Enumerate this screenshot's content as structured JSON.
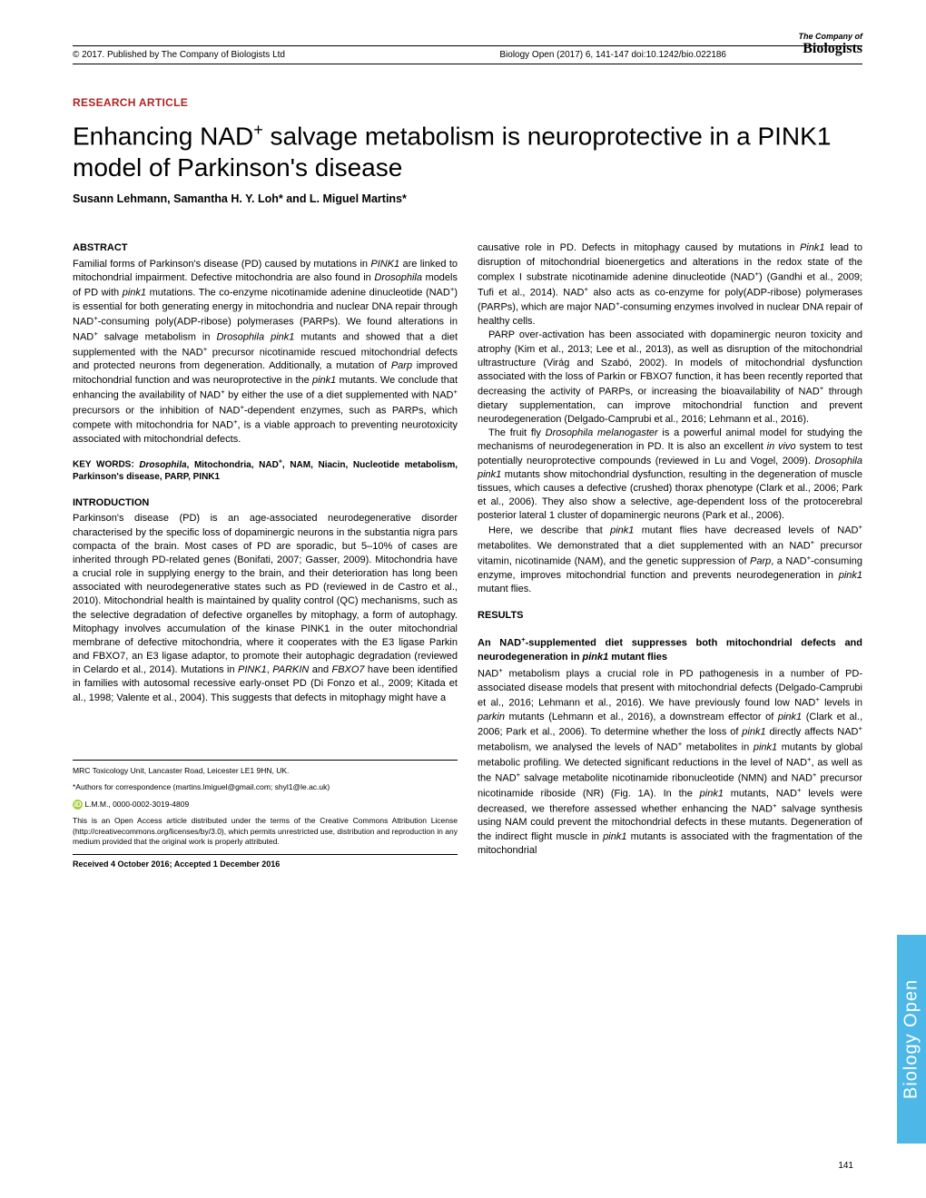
{
  "header": {
    "copyright": "© 2017. Published by The Company of Biologists Ltd",
    "citation": "Biology Open (2017) 6, 141-147 doi:10.1242/bio.022186"
  },
  "logo": {
    "line1": "The Company of",
    "line2": "Biologists"
  },
  "article_type": "RESEARCH ARTICLE",
  "title_html": "Enhancing NAD<sup>+</sup> salvage metabolism is neuroprotective in a PINK1 model of Parkinson's disease",
  "authors": "Susann Lehmann, Samantha H. Y. Loh* and L. Miguel Martins*",
  "abstract": {
    "head": "ABSTRACT",
    "text": "Familial forms of Parkinson's disease (PD) caused by mutations in <i>PINK1</i> are linked to mitochondrial impairment. Defective mitochondria are also found in <i>Drosophila</i> models of PD with <i>pink1</i> mutations. The co-enzyme nicotinamide adenine dinucleotide (NAD<sup>+</sup>) is essential for both generating energy in mitochondria and nuclear DNA repair through NAD<sup>+</sup>-consuming poly(ADP-ribose) polymerases (PARPs). We found alterations in NAD<sup>+</sup> salvage metabolism in <i>Drosophila pink1</i> mutants and showed that a diet supplemented with the NAD<sup>+</sup> precursor nicotinamide rescued mitochondrial defects and protected neurons from degeneration. Additionally, a mutation of <i>Parp</i> improved mitochondrial function and was neuroprotective in the <i>pink1</i> mutants. We conclude that enhancing the availability of NAD<sup>+</sup> by either the use of a diet supplemented with NAD<sup>+</sup> precursors or the inhibition of NAD<sup>+</sup>-dependent enzymes, such as PARPs, which compete with mitochondria for NAD<sup>+</sup>, is a viable approach to preventing neurotoxicity associated with mitochondrial defects."
  },
  "keywords": {
    "label": "KEY WORDS:",
    "text": "<i>Drosophila</i>, Mitochondria, NAD<sup>+</sup>, NAM, Niacin, Nucleotide metabolism, Parkinson's disease, PARP, PINK1"
  },
  "introduction": {
    "head": "INTRODUCTION",
    "text": "Parkinson's disease (PD) is an age-associated neurodegenerative disorder characterised by the specific loss of dopaminergic neurons in the substantia nigra pars compacta of the brain. Most cases of PD are sporadic, but 5–10% of cases are inherited through PD-related genes (Bonifati, 2007; Gasser, 2009). Mitochondria have a crucial role in supplying energy to the brain, and their deterioration has long been associated with neurodegenerative states such as PD (reviewed in de Castro et al., 2010). Mitochondrial health is maintained by quality control (QC) mechanisms, such as the selective degradation of defective organelles by mitophagy, a form of autophagy. Mitophagy involves accumulation of the kinase PINK1 in the outer mitochondrial membrane of defective mitochondria, where it cooperates with the E3 ligase Parkin and FBXO7, an E3 ligase adaptor, to promote their autophagic degradation (reviewed in Celardo et al., 2014). Mutations in <i>PINK1</i>, <i>PARKIN</i> and <i>FBXO7</i> have been identified in families with autosomal recessive early-onset PD (Di Fonzo et al., 2009; Kitada et al., 1998; Valente et al., 2004). This suggests that defects in mitophagy might have a"
  },
  "right_col": {
    "p1": "causative role in PD. Defects in mitophagy caused by mutations in <i>Pink1</i> lead to disruption of mitochondrial bioenergetics and alterations in the redox state of the complex I substrate nicotinamide adenine dinucleotide (NAD<sup>+</sup>) (Gandhi et al., 2009; Tufi et al., 2014). NAD<sup>+</sup> also acts as co-enzyme for poly(ADP-ribose) polymerases (PARPs), which are major NAD<sup>+</sup>-consuming enzymes involved in nuclear DNA repair of healthy cells.",
    "p2": "PARP over-activation has been associated with dopaminergic neuron toxicity and atrophy (Kim et al., 2013; Lee et al., 2013), as well as disruption of the mitochondrial ultrastructure (Virág and Szabó, 2002). In models of mitochondrial dysfunction associated with the loss of Parkin or FBXO7 function, it has been recently reported that decreasing the activity of PARPs, or increasing the bioavailability of NAD<sup>+</sup> through dietary supplementation, can improve mitochondrial function and prevent neurodegeneration (Delgado-Camprubi et al., 2016; Lehmann et al., 2016).",
    "p3": "The fruit fly <i>Drosophila melanogaster</i> is a powerful animal model for studying the mechanisms of neurodegeneration in PD. It is also an excellent <i>in vivo</i> system to test potentially neuroprotective compounds (reviewed in Lu and Vogel, 2009). <i>Drosophila pink1</i> mutants show mitochondrial dysfunction, resulting in the degeneration of muscle tissues, which causes a defective (crushed) thorax phenotype (Clark et al., 2006; Park et al., 2006). They also show a selective, age-dependent loss of the protocerebral posterior lateral 1 cluster of dopaminergic neurons (Park et al., 2006).",
    "p4": "Here, we describe that <i>pink1</i> mutant flies have decreased levels of NAD<sup>+</sup> metabolites. We demonstrated that a diet supplemented with an NAD<sup>+</sup> precursor vitamin, nicotinamide (NAM), and the genetic suppression of <i>Parp</i>, a NAD<sup>+</sup>-consuming enzyme, improves mitochondrial function and prevents neurodegeneration in <i>pink1</i> mutant flies."
  },
  "results": {
    "head": "RESULTS",
    "subhead": "An NAD<sup>+</sup>-supplemented diet suppresses both mitochondrial defects and neurodegeneration in <i>pink1</i> mutant flies",
    "text": "NAD<sup>+</sup> metabolism plays a crucial role in PD pathogenesis in a number of PD-associated disease models that present with mitochondrial defects (Delgado-Camprubi et al., 2016; Lehmann et al., 2016). We have previously found low NAD<sup>+</sup> levels in <i>parkin</i> mutants (Lehmann et al., 2016), a downstream effector of <i>pink1</i> (Clark et al., 2006; Park et al., 2006). To determine whether the loss of <i>pink1</i> directly affects NAD<sup>+</sup> metabolism, we analysed the levels of NAD<sup>+</sup> metabolites in <i>pink1</i> mutants by global metabolic profiling. We detected significant reductions in the level of NAD<sup>+</sup>, as well as the NAD<sup>+</sup> salvage metabolite nicotinamide ribonucleotide (NMN) and NAD<sup>+</sup> precursor nicotinamide riboside (NR) (Fig. 1A). In the <i>pink1</i> mutants, NAD<sup>+</sup> levels were decreased, we therefore assessed whether enhancing the NAD<sup>+</sup> salvage synthesis using NAM could prevent the mitochondrial defects in these mutants. Degeneration of the indirect flight muscle in <i>pink1</i> mutants is associated with the fragmentation of the mitochondrial"
  },
  "footer": {
    "affiliation": "MRC Toxicology Unit, Lancaster Road, Leicester LE1 9HN, UK.",
    "correspondence": "*Authors for correspondence (martins.lmiguel@gmail.com; shyl1@le.ac.uk)",
    "orcid": "L.M.M., 0000-0002-3019-4809",
    "license": "This is an Open Access article distributed under the terms of the Creative Commons Attribution License (http://creativecommons.org/licenses/by/3.0), which permits unrestricted use, distribution and reproduction in any medium provided that the original work is properly attributed.",
    "received": "Received 4 October 2016; Accepted 1 December 2016"
  },
  "side_tab": "Biology Open",
  "page_num": "141",
  "colors": {
    "accent_red": "#b22222",
    "tab_blue": "#4db8e8",
    "orcid_green": "#a6ce39"
  }
}
